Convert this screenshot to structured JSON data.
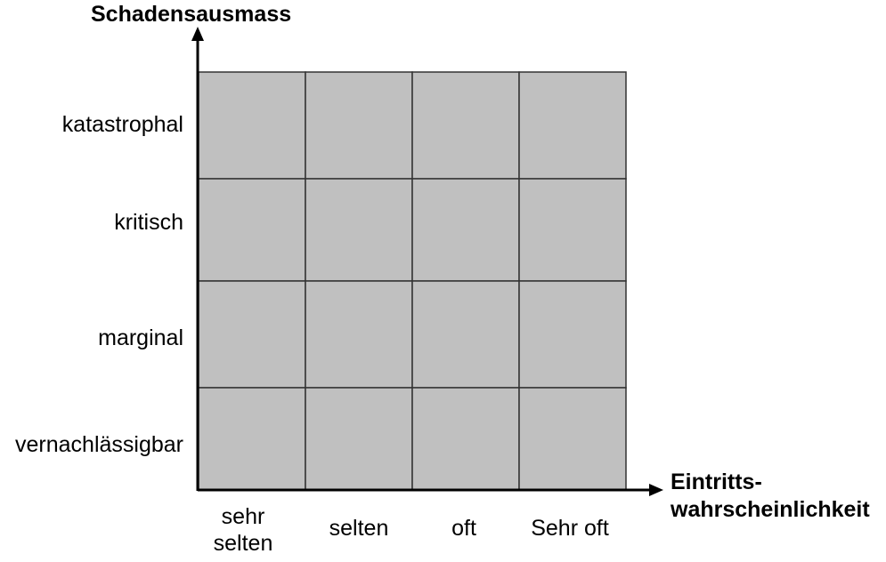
{
  "y_axis_title": "Schadensausmass",
  "x_axis_title_line1": "Eintritts-",
  "x_axis_title_line2": "wahrscheinlichkeit",
  "rows": [
    "katastrophal",
    "kritisch",
    "marginal",
    "vernachlässigbar"
  ],
  "columns": [
    {
      "line1": "sehr",
      "line2": "selten"
    },
    {
      "line1": "selten",
      "line2": ""
    },
    {
      "line1": "oft",
      "line2": ""
    },
    {
      "line1": "Sehr oft",
      "line2": ""
    }
  ],
  "colors": {
    "cell_fill": "#c0c0c0",
    "grid_line": "#333333",
    "axis": "#000000"
  }
}
